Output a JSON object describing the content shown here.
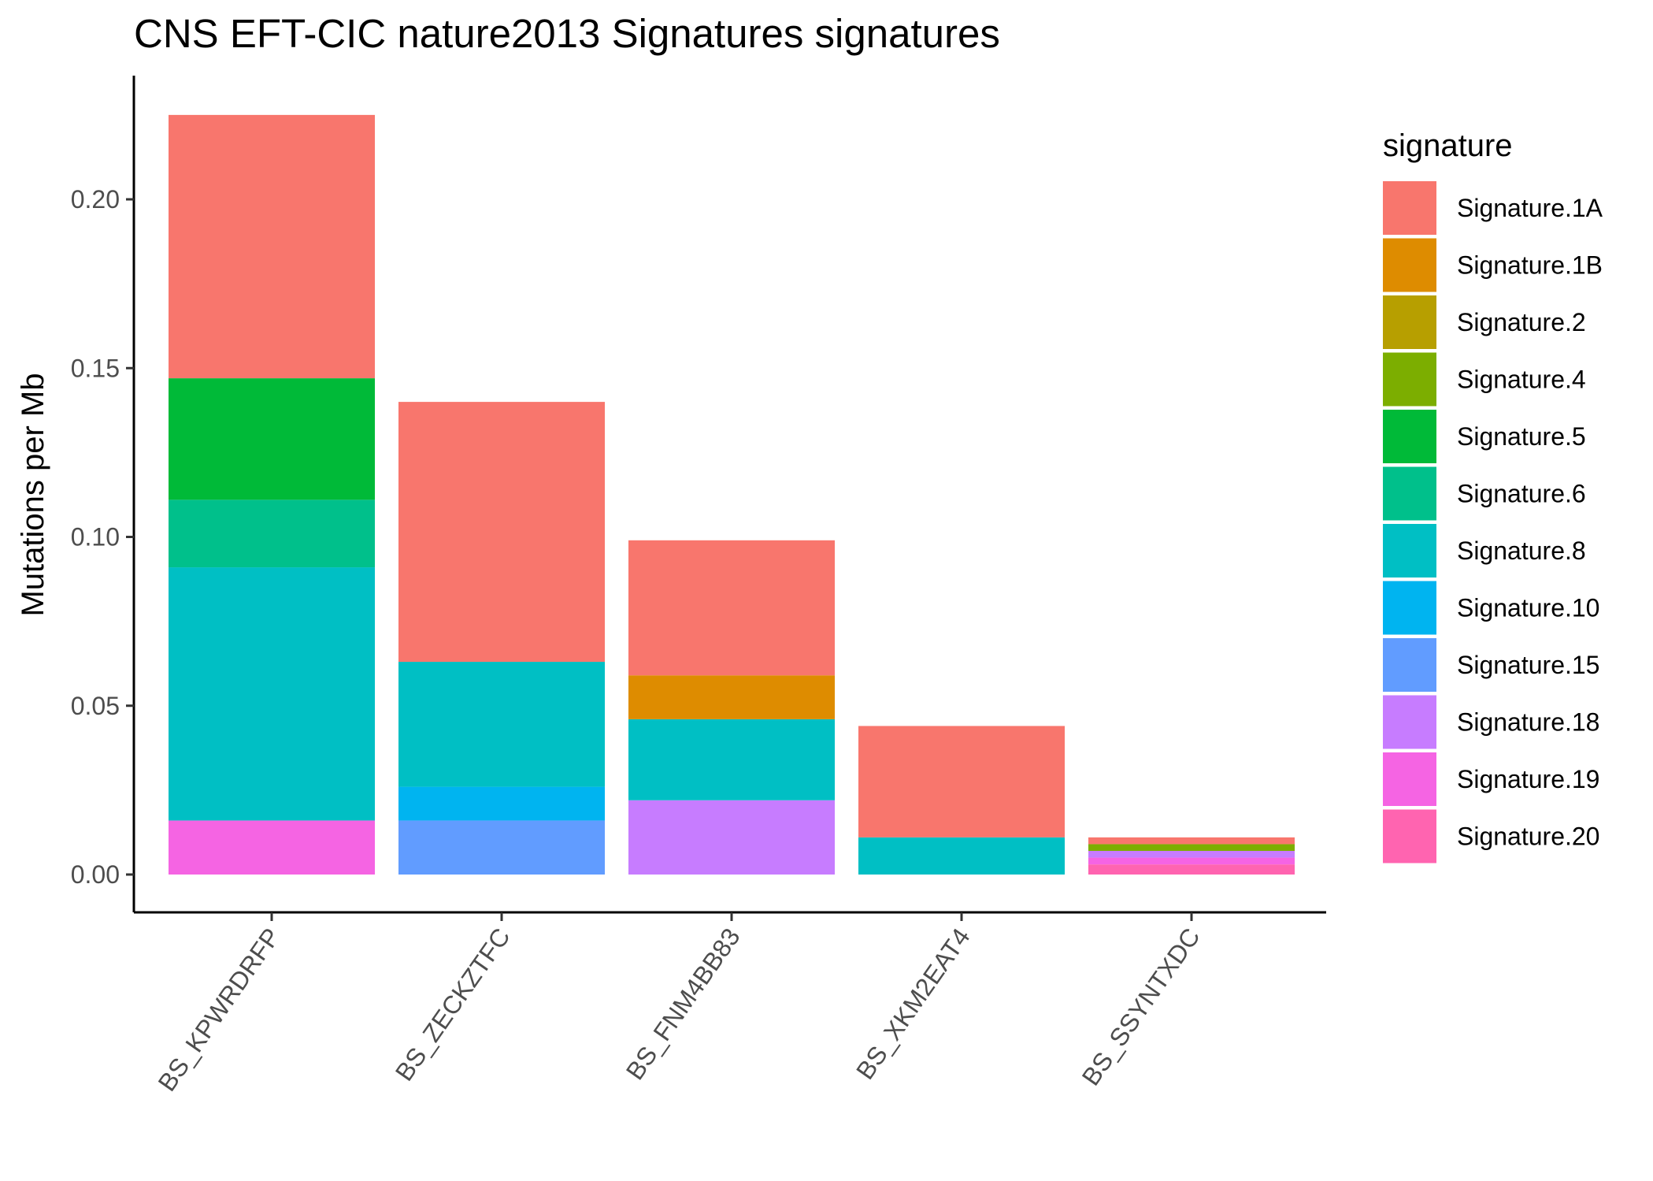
{
  "chart_data": {
    "type": "bar",
    "stacked": true,
    "title": "CNS EFT-CIC nature2013 Signatures signatures",
    "xlabel": "",
    "ylabel": "Mutations per Mb",
    "ylim": [
      0,
      0.225
    ],
    "yticks": [
      "0.00",
      "0.05",
      "0.10",
      "0.15",
      "0.20"
    ],
    "ytick_values": [
      0,
      0.05,
      0.1,
      0.15,
      0.2
    ],
    "categories": [
      "BS_KPWRDRFP",
      "BS_ZECKZTFC",
      "BS_FNM4BB83",
      "BS_XKM2EAT4",
      "BS_SSYNTXDC"
    ],
    "legend_title": "signature",
    "legend_position": "right",
    "grid": false,
    "series": [
      {
        "name": "Signature.1A",
        "color": "#F8766D",
        "values": [
          0.078,
          0.077,
          0.04,
          0.033,
          0.002
        ]
      },
      {
        "name": "Signature.1B",
        "color": "#DE8C00",
        "values": [
          0,
          0,
          0.013,
          0,
          0
        ]
      },
      {
        "name": "Signature.2",
        "color": "#B79F00",
        "values": [
          0,
          0,
          0,
          0,
          0
        ]
      },
      {
        "name": "Signature.4",
        "color": "#7CAE00",
        "values": [
          0,
          0,
          0,
          0,
          0.002
        ]
      },
      {
        "name": "Signature.5",
        "color": "#00BA38",
        "values": [
          0.036,
          0,
          0,
          0,
          0
        ]
      },
      {
        "name": "Signature.6",
        "color": "#00C08B",
        "values": [
          0.02,
          0,
          0,
          0,
          0
        ]
      },
      {
        "name": "Signature.8",
        "color": "#00BFC4",
        "values": [
          0.075,
          0.037,
          0.024,
          0.011,
          0
        ]
      },
      {
        "name": "Signature.10",
        "color": "#00B4F0",
        "values": [
          0,
          0.01,
          0,
          0,
          0
        ]
      },
      {
        "name": "Signature.15",
        "color": "#619CFF",
        "values": [
          0,
          0.016,
          0,
          0,
          0
        ]
      },
      {
        "name": "Signature.18",
        "color": "#C77CFF",
        "values": [
          0,
          0,
          0.022,
          0,
          0.002
        ]
      },
      {
        "name": "Signature.19",
        "color": "#F564E3",
        "values": [
          0.016,
          0,
          0,
          0,
          0.002
        ]
      },
      {
        "name": "Signature.20",
        "color": "#FF64B0",
        "values": [
          0,
          0,
          0,
          0,
          0.003
        ]
      }
    ]
  }
}
